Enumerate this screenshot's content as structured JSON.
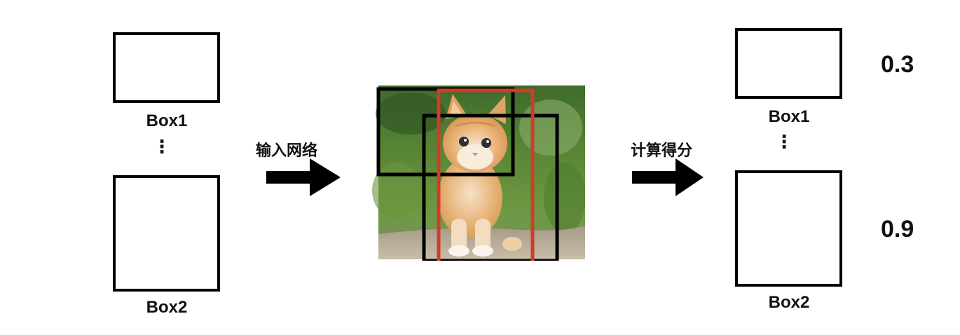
{
  "left": {
    "box1_label": "Box1",
    "box2_label": "Box2",
    "ellipsis": "⋮"
  },
  "step1": {
    "label": "输入网络"
  },
  "step2": {
    "label": "计算得分"
  },
  "right": {
    "box1_label": "Box1",
    "box2_label": "Box2",
    "ellipsis": "⋮",
    "score1": "0.3",
    "score2": "0.9"
  },
  "colors": {
    "box_stroke": "#000000",
    "highlight_box": "#d13b2a",
    "arrow": "#000000"
  },
  "icons": {
    "arrow": "arrow-right-icon"
  }
}
